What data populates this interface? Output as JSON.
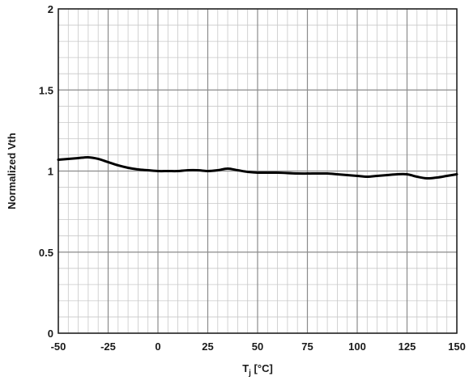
{
  "chart_data": {
    "type": "line",
    "xlabel": "T",
    "xlabel_sub": "j",
    "xlabel_unit": " [°C]",
    "ylabel": "Normalized Vth",
    "xlim": [
      -50,
      150
    ],
    "ylim": [
      0,
      2
    ],
    "x_ticks": [
      "-50",
      "-25",
      "0",
      "25",
      "50",
      "75",
      "100",
      "125",
      "150"
    ],
    "y_ticks": [
      "0",
      "0.5",
      "1",
      "1.5",
      "2"
    ],
    "grid": true,
    "legend": "none",
    "series": [
      {
        "color": "#000000",
        "x": [
          -50,
          -45,
          -40,
          -35,
          -30,
          -25,
          -20,
          -15,
          -10,
          -5,
          0,
          5,
          10,
          15,
          20,
          25,
          30,
          35,
          40,
          45,
          50,
          60,
          70,
          80,
          85,
          90,
          95,
          100,
          105,
          110,
          115,
          120,
          125,
          130,
          135,
          140,
          145,
          150
        ],
        "y": [
          1.07,
          1.075,
          1.08,
          1.085,
          1.075,
          1.055,
          1.035,
          1.02,
          1.01,
          1.005,
          1.0,
          1.0,
          1.0,
          1.005,
          1.005,
          1.0,
          1.005,
          1.015,
          1.005,
          0.995,
          0.99,
          0.99,
          0.985,
          0.985,
          0.985,
          0.98,
          0.975,
          0.97,
          0.965,
          0.97,
          0.975,
          0.98,
          0.98,
          0.965,
          0.955,
          0.96,
          0.97,
          0.98
        ]
      }
    ]
  }
}
